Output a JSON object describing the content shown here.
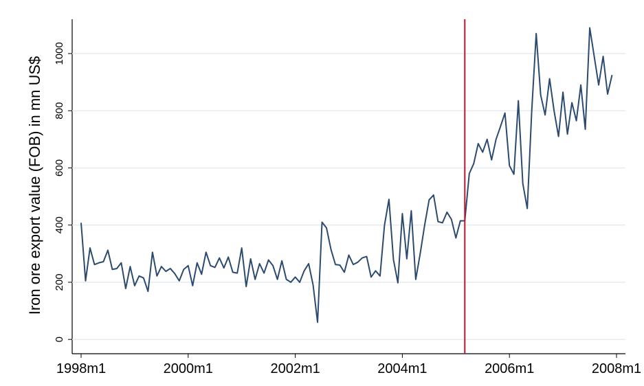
{
  "chart_data": {
    "type": "line",
    "ylabel": "Iron ore export value (FOB) in mn US$",
    "x": [
      456,
      457,
      458,
      459,
      460,
      461,
      462,
      463,
      464,
      465,
      466,
      467,
      468,
      469,
      470,
      471,
      472,
      473,
      474,
      475,
      476,
      477,
      478,
      479,
      480,
      481,
      482,
      483,
      484,
      485,
      486,
      487,
      488,
      489,
      490,
      491,
      492,
      493,
      494,
      495,
      496,
      497,
      498,
      499,
      500,
      501,
      502,
      503,
      504,
      505,
      506,
      507,
      508,
      509,
      510,
      511,
      512,
      513,
      514,
      515,
      516,
      517,
      518,
      519,
      520,
      521,
      522,
      523,
      524,
      525,
      526,
      527,
      528,
      529,
      530,
      531,
      532,
      533,
      534,
      535,
      536,
      537,
      538,
      539,
      540,
      541,
      542,
      543,
      544,
      545,
      546,
      547,
      548,
      549,
      550,
      551,
      552,
      553,
      554,
      555,
      556,
      557,
      558,
      559,
      560,
      561,
      562,
      563,
      564,
      565,
      566,
      567,
      568,
      569,
      570,
      571,
      572,
      573,
      574,
      575
    ],
    "series": [
      {
        "color": "#2b4a6f",
        "values": [
          408,
          205,
          320,
          262,
          268,
          272,
          312,
          245,
          248,
          268,
          178,
          255,
          188,
          222,
          215,
          168,
          305,
          222,
          255,
          238,
          248,
          230,
          205,
          245,
          258,
          188,
          268,
          228,
          305,
          258,
          252,
          285,
          250,
          288,
          235,
          232,
          320,
          185,
          282,
          210,
          265,
          232,
          278,
          258,
          210,
          275,
          210,
          200,
          218,
          200,
          240,
          265,
          190,
          60,
          410,
          390,
          315,
          262,
          260,
          235,
          295,
          262,
          270,
          285,
          290,
          218,
          240,
          222,
          400,
          490,
          280,
          198,
          440,
          282,
          450,
          210,
          300,
          400,
          488,
          505,
          412,
          408,
          445,
          420,
          355,
          415,
          415,
          580,
          615,
          685,
          655,
          700,
          628,
          700,
          745,
          792,
          608,
          578,
          835,
          545,
          458,
          800,
          1070,
          855,
          785,
          912,
          800,
          710,
          865,
          718,
          828,
          765,
          890,
          735,
          1090,
          990,
          890,
          990,
          858,
          925
        ]
      }
    ],
    "xlim": [
      454,
      578
    ],
    "xticks": [
      {
        "value": 456,
        "label": "1998m1"
      },
      {
        "value": 480,
        "label": "2000m1"
      },
      {
        "value": 504,
        "label": "2002m1"
      },
      {
        "value": 528,
        "label": "2004m1"
      },
      {
        "value": 552,
        "label": "2006m1"
      },
      {
        "value": 576,
        "label": "2008m1"
      }
    ],
    "ylim": [
      -50,
      1120
    ],
    "yticks": [
      0,
      200,
      400,
      600,
      800,
      1000
    ],
    "grid": true,
    "vline": {
      "x": 542,
      "color": "#c8102e"
    }
  }
}
